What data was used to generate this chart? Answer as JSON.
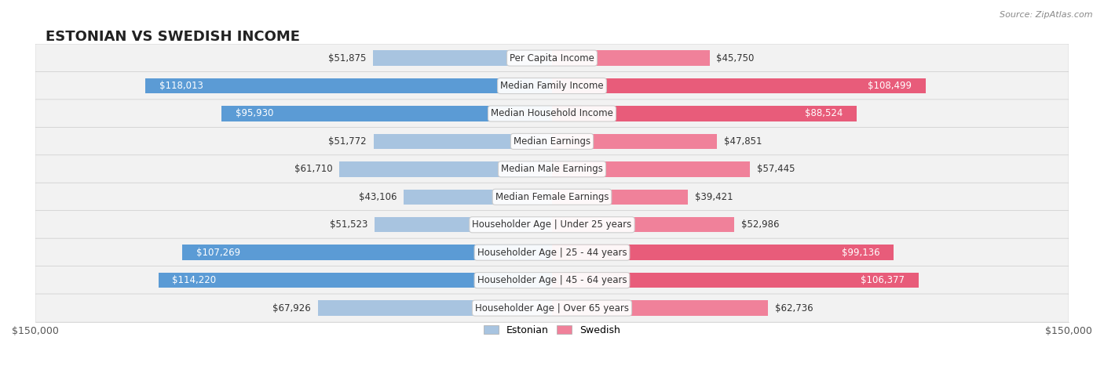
{
  "title": "ESTONIAN VS SWEDISH INCOME",
  "source": "Source: ZipAtlas.com",
  "max_value": 150000,
  "categories": [
    "Per Capita Income",
    "Median Family Income",
    "Median Household Income",
    "Median Earnings",
    "Median Male Earnings",
    "Median Female Earnings",
    "Householder Age | Under 25 years",
    "Householder Age | 25 - 44 years",
    "Householder Age | 45 - 64 years",
    "Householder Age | Over 65 years"
  ],
  "estonian_values": [
    51875,
    118013,
    95930,
    51772,
    61710,
    43106,
    51523,
    107269,
    114220,
    67926
  ],
  "swedish_values": [
    45750,
    108499,
    88524,
    47851,
    57445,
    39421,
    52986,
    99136,
    106377,
    62736
  ],
  "estonian_color": "#a8c4e0",
  "swedish_color": "#f0819a",
  "estonian_dark_color": "#5b9bd5",
  "swedish_dark_color": "#e85c7a",
  "row_bg_color": "#f2f2f2",
  "bar_height": 0.55,
  "background_color": "#ffffff",
  "title_fontsize": 13,
  "label_fontsize": 8.5,
  "value_fontsize": 8.5,
  "legend_fontsize": 9
}
